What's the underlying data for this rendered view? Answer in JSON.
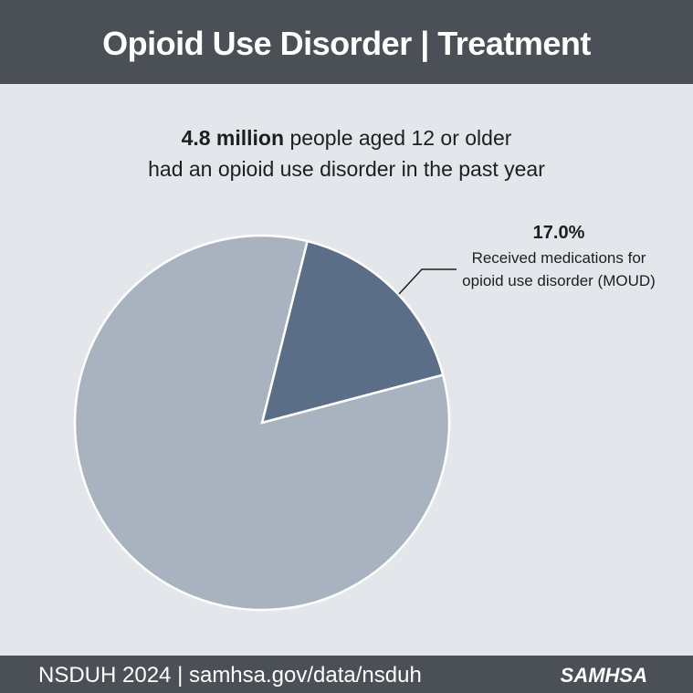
{
  "chart_data": {
    "type": "pie",
    "title": "Opioid Use Disorder | Treatment",
    "subtitle_emphasis": "4.8 million",
    "subtitle_lines": [
      "people aged 12 or older",
      "had an opioid use disorder in the past year"
    ],
    "categories": [
      "Received medications for opioid use disorder (MOUD)",
      null
    ],
    "values": [
      17.0,
      83.0
    ],
    "value_labels": [
      "17.0%",
      null
    ],
    "colors": [
      "#5b6e87",
      "#a8b3bf"
    ],
    "source": "NSDUH 2024 | samhsa.gov/data/nsduh",
    "logo": "SAMHSA"
  }
}
